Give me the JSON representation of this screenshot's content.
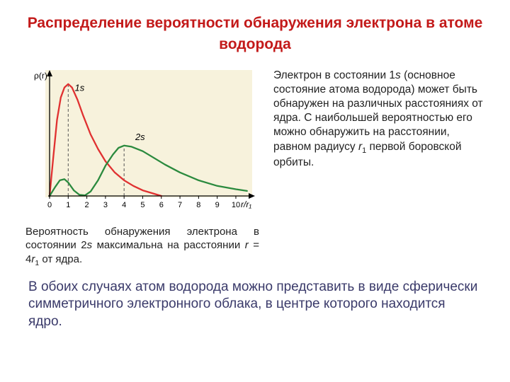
{
  "title": "Распределение вероятности обнаружения электрона в атоме водорода",
  "chart": {
    "background": "#f7f2dc",
    "axis_color": "#000000",
    "grid_dash_color": "#555555",
    "ylabel": "ρ(r)",
    "xlabel": "r/r₁",
    "x_ticks": [
      0,
      1,
      2,
      3,
      4,
      5,
      6,
      7,
      8,
      9,
      10
    ],
    "peak_x_1s": 1,
    "peak_x_2s": 4,
    "series": [
      {
        "name": "1s",
        "color": "#e03131",
        "label_x": 1.35,
        "label_y": 0.94,
        "line_width": 2.3,
        "points": [
          [
            0.0,
            0.0
          ],
          [
            0.2,
            0.35
          ],
          [
            0.4,
            0.68
          ],
          [
            0.6,
            0.88
          ],
          [
            0.8,
            0.97
          ],
          [
            1.0,
            1.0
          ],
          [
            1.2,
            0.97
          ],
          [
            1.5,
            0.86
          ],
          [
            1.8,
            0.72
          ],
          [
            2.2,
            0.55
          ],
          [
            2.6,
            0.42
          ],
          [
            3.0,
            0.31
          ],
          [
            3.5,
            0.21
          ],
          [
            4.0,
            0.14
          ],
          [
            4.5,
            0.09
          ],
          [
            5.0,
            0.05
          ],
          [
            5.5,
            0.025
          ],
          [
            6.0,
            0.0
          ]
        ]
      },
      {
        "name": "2s",
        "color": "#2b8a3e",
        "label_x": 4.6,
        "label_y": 0.5,
        "line_width": 2.3,
        "points": [
          [
            0.0,
            0.0
          ],
          [
            0.3,
            0.08
          ],
          [
            0.55,
            0.14
          ],
          [
            0.8,
            0.15
          ],
          [
            1.0,
            0.12
          ],
          [
            1.3,
            0.05
          ],
          [
            1.6,
            0.01
          ],
          [
            1.9,
            0.005
          ],
          [
            2.2,
            0.04
          ],
          [
            2.6,
            0.14
          ],
          [
            3.0,
            0.27
          ],
          [
            3.4,
            0.37
          ],
          [
            3.7,
            0.43
          ],
          [
            4.0,
            0.45
          ],
          [
            4.4,
            0.44
          ],
          [
            5.0,
            0.4
          ],
          [
            5.6,
            0.34
          ],
          [
            6.2,
            0.28
          ],
          [
            7.0,
            0.21
          ],
          [
            8.0,
            0.14
          ],
          [
            9.0,
            0.09
          ],
          [
            10.0,
            0.06
          ],
          [
            10.6,
            0.045
          ]
        ]
      }
    ],
    "xlim": [
      0,
      10.8
    ],
    "ylim": [
      0,
      1.1
    ]
  },
  "caption_html": "Вероятность обнаружения электрона в состоянии 2<span class='ital'>s</span> максимальна на расстоянии <span class='ital'>r</span> = 4<span class='ital'>r</span><span class='sub'>1</span> от ядра.",
  "side_html": "Электрон в состоянии 1<span class='ital'>s</span> (основное состояние атома водорода) может быть обнаружен на различных расстояниях от ядра. С наибольшей вероятностью его можно обнаружить на расстоянии, равном радиусу <span class='ital'>r</span><span class='sub'>1</span> первой боровской орбиты.",
  "bottom": "В обоих случаях атом водорода можно представить в виде сферически симметричного электронного облака, в центре которого находится ядро."
}
